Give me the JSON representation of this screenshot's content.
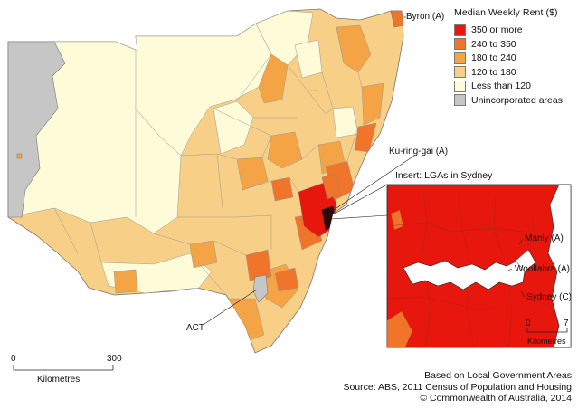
{
  "legend": {
    "title": "Median Weekly Rent ($)",
    "items": [
      {
        "label": "350 or more",
        "color": "#e8170d"
      },
      {
        "label": "240 to 350",
        "color": "#f0752a"
      },
      {
        "label": "180 to 240",
        "color": "#f4a444"
      },
      {
        "label": "120 to 180",
        "color": "#f7cf86"
      },
      {
        "label": "Less than 120",
        "color": "#fefbd9"
      },
      {
        "label": "Unincorporated areas",
        "color": "#c6c6c6"
      }
    ]
  },
  "labels": {
    "byron": "Byron (A)",
    "kuringgai": "Ku-ring-gai (A)",
    "act": "ACT",
    "inset_title": "Insert: LGAs in Sydney",
    "manly": "Manly (A)",
    "woollahra": "Woollahra (A)",
    "sydney": "Sydney (C)"
  },
  "main_scale": {
    "min": "0",
    "max": "300",
    "unit": "Kilometres"
  },
  "inset_scale": {
    "min": "0",
    "max": "7",
    "unit": "Kilometres"
  },
  "footer": {
    "line1": "Based on Local Government Areas",
    "line2": "Source: ABS, 2011 Census of Population and Housing",
    "line3": "© Commonwealth of Australia, 2014"
  }
}
